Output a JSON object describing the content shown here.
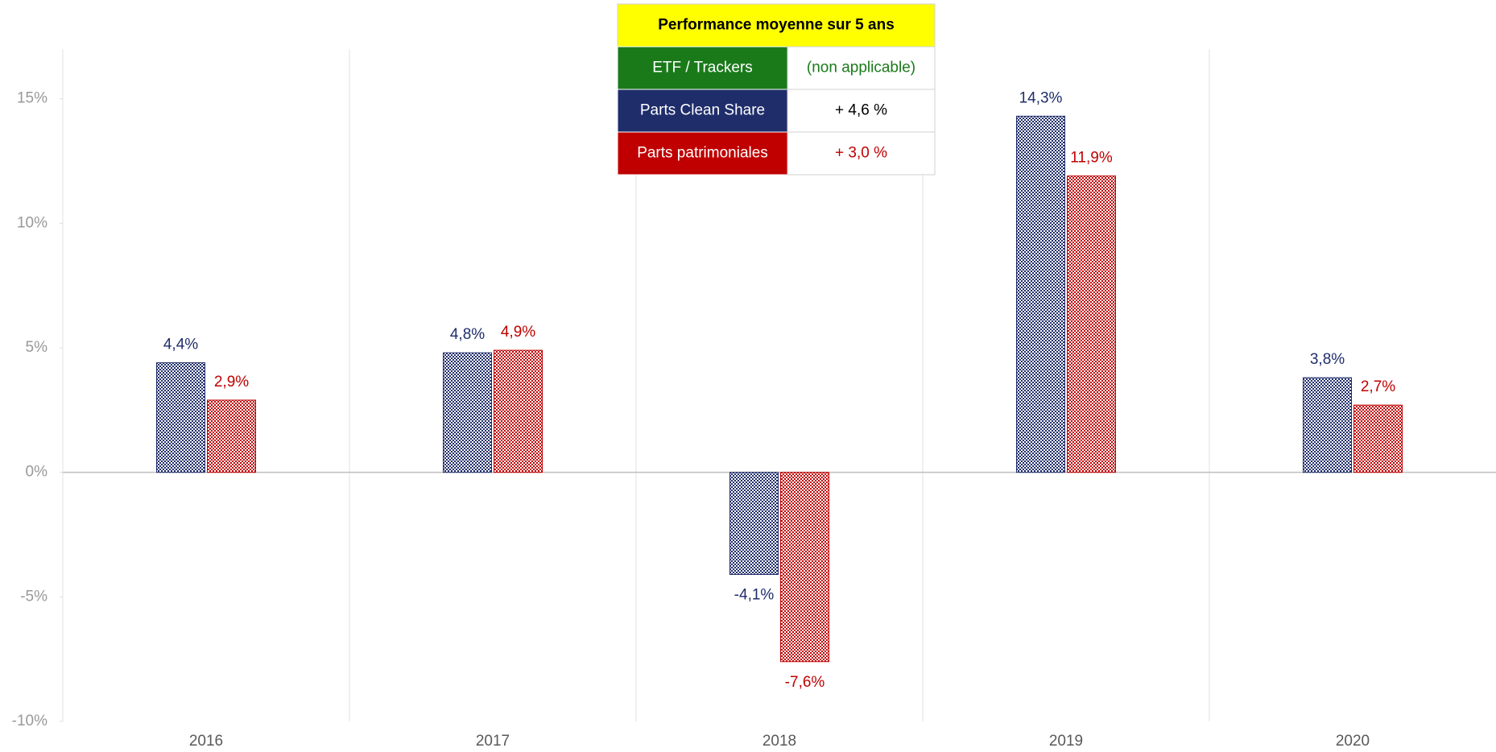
{
  "chart_data": {
    "type": "bar",
    "categories": [
      "2016",
      "2017",
      "2018",
      "2019",
      "2020"
    ],
    "series": [
      {
        "name": "Parts Clean Share",
        "color": "#1f2d6b",
        "values": [
          4.4,
          4.8,
          -4.1,
          14.3,
          3.8
        ],
        "value_labels": [
          "4,4%",
          "4,8%",
          "-4,1%",
          "14,3%",
          "3,8%"
        ],
        "summary": "+ 4,6 %",
        "summary_color": "#000000"
      },
      {
        "name": "Parts patrimoniales",
        "color": "#c00000",
        "values": [
          2.9,
          4.9,
          -7.6,
          11.9,
          2.7
        ],
        "value_labels": [
          "2,9%",
          "4,9%",
          "-7,6%",
          "11,9%",
          "2,7%"
        ],
        "summary": "+ 3,0 %",
        "summary_color": "#c00000"
      }
    ],
    "legend_title": "Performance moyenne sur 5 ans",
    "legend_extra": {
      "name": "ETF / Trackers",
      "summary": "(non applicable)",
      "color": "#1a7a1a"
    },
    "ylim": [
      -10,
      17
    ],
    "yticks": [
      {
        "value": -10,
        "label": "-10%"
      },
      {
        "value": -5,
        "label": "-5%"
      },
      {
        "value": 0,
        "label": "0%"
      },
      {
        "value": 5,
        "label": "5%"
      },
      {
        "value": 10,
        "label": "10%"
      },
      {
        "value": 15,
        "label": "15%"
      }
    ],
    "grid": "x"
  }
}
